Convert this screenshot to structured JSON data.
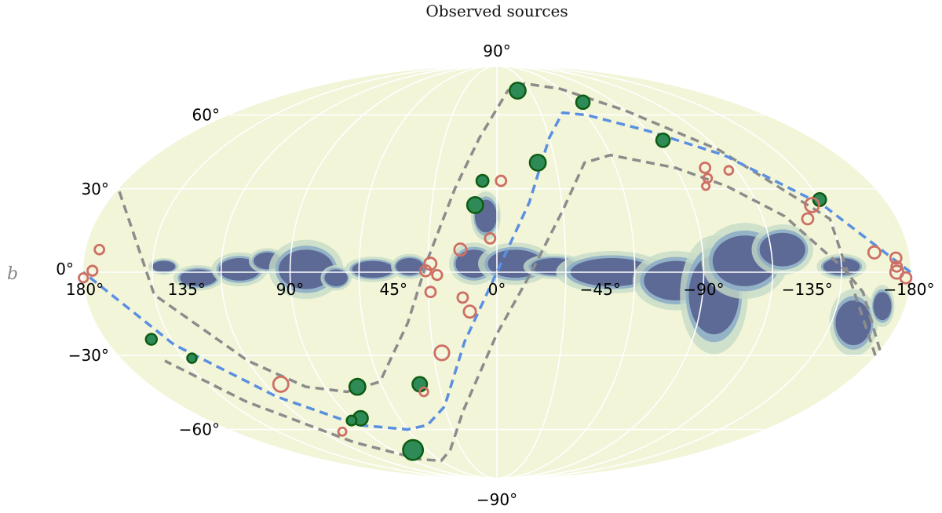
{
  "chart_data": {
    "type": "scatter",
    "projection": "mollweide",
    "title": "Observed sources",
    "xlabel": "",
    "ylabel": "b",
    "x_ticks": [
      {
        "value": 180,
        "label": "180°"
      },
      {
        "value": 135,
        "label": "135°"
      },
      {
        "value": 90,
        "label": "90°"
      },
      {
        "value": 45,
        "label": "45°"
      },
      {
        "value": 0,
        "label": "0°"
      },
      {
        "value": -45,
        "label": "−45°"
      },
      {
        "value": -90,
        "label": "−90°"
      },
      {
        "value": -135,
        "label": "−135°"
      },
      {
        "value": -180,
        "label": "−180°"
      }
    ],
    "y_ticks": [
      {
        "value": 90,
        "label": "90°"
      },
      {
        "value": 60,
        "label": "60°"
      },
      {
        "value": 30,
        "label": "30°"
      },
      {
        "value": 0,
        "label": "0°"
      },
      {
        "value": -30,
        "label": "−30°"
      },
      {
        "value": -60,
        "label": "−60°"
      },
      {
        "value": -90,
        "label": "−90°"
      }
    ],
    "xlim": [
      180,
      -180
    ],
    "ylim": [
      -90,
      90
    ],
    "grid": true,
    "colors": {
      "background_map": "#f2f5d8",
      "dust_dark": "#5d6a96",
      "dust_mid": "#8aaac7",
      "dust_light": "#c7dcc8",
      "filled_marker": "#2e8b57",
      "filled_edge": "#0e5c12",
      "open_marker": "#cd6f64",
      "gray_curve": "#8c8c8c",
      "blue_curve": "#5b8fe0",
      "grid": "#ffffff"
    },
    "series": [
      {
        "marker": "filled",
        "points": [
          {
            "l": -19,
            "b": 72,
            "size": 3
          },
          {
            "l": -66,
            "b": 66,
            "size": 2
          },
          {
            "l": -94,
            "b": 49,
            "size": 2
          },
          {
            "l": -21,
            "b": 40,
            "size": 3
          },
          {
            "l": 7,
            "b": 33,
            "size": 1.5
          },
          {
            "l": 10,
            "b": 24,
            "size": 3
          },
          {
            "l": -150,
            "b": 26,
            "size": 1.8
          },
          {
            "l": 159,
            "b": -24,
            "size": 1.2
          },
          {
            "l": 146,
            "b": -31,
            "size": 0.8
          },
          {
            "l": 73,
            "b": -42,
            "size": 3
          },
          {
            "l": 40,
            "b": -41,
            "size": 2.4
          },
          {
            "l": 84,
            "b": -55,
            "size": 2.4
          },
          {
            "l": 91,
            "b": -56,
            "size": 0.9
          },
          {
            "l": 72,
            "b": -70,
            "size": 5
          }
        ]
      },
      {
        "marker": "open",
        "points": [
          {
            "l": -2,
            "b": 33,
            "size": 1
          },
          {
            "l": -105,
            "b": 38,
            "size": 1
          },
          {
            "l": -103,
            "b": 34,
            "size": 0.6
          },
          {
            "l": -116,
            "b": 37,
            "size": 0.6
          },
          {
            "l": -100,
            "b": 31,
            "size": 0.4
          },
          {
            "l": -145,
            "b": 24,
            "size": 2.2
          },
          {
            "l": -140,
            "b": 19,
            "size": 1.2
          },
          {
            "l": 3,
            "b": 12,
            "size": 1
          },
          {
            "l": 16,
            "b": 8,
            "size": 1.5
          },
          {
            "l": 29,
            "b": 3,
            "size": 1.5
          },
          {
            "l": 31,
            "b": 0.5,
            "size": 1.2
          },
          {
            "l": 26,
            "b": -1,
            "size": 0.9
          },
          {
            "l": 29,
            "b": -7,
            "size": 1
          },
          {
            "l": 15,
            "b": -9,
            "size": 1
          },
          {
            "l": 12,
            "b": -14,
            "size": 1.5
          },
          {
            "l": 26,
            "b": -29,
            "size": 2.4
          },
          {
            "l": 39,
            "b": -44,
            "size": 0.6
          },
          {
            "l": 112,
            "b": -41,
            "size": 2.6
          },
          {
            "l": 106,
            "b": -61,
            "size": 0.5
          },
          {
            "l": 174,
            "b": 8,
            "size": 0.8
          },
          {
            "l": 176,
            "b": 0.5,
            "size": 0.9
          },
          {
            "l": 180,
            "b": -2,
            "size": 0.7
          },
          {
            "l": -165,
            "b": 7,
            "size": 1.5
          },
          {
            "l": -174,
            "b": 5,
            "size": 1.2
          },
          {
            "l": -174,
            "b": 2,
            "size": 1
          },
          {
            "l": -174,
            "b": 0,
            "size": 1.8
          },
          {
            "l": -178,
            "b": -2,
            "size": 1.2
          }
        ]
      }
    ],
    "curves": [
      {
        "style": "gray-dashed",
        "points": [
          [
            -180,
            -30
          ],
          [
            -150,
            19
          ],
          [
            -120,
            45
          ],
          [
            -90,
            62
          ],
          [
            -60,
            73
          ],
          [
            -30,
            76
          ],
          [
            -10,
            72
          ],
          [
            10,
            50
          ],
          [
            20,
            30
          ],
          [
            30,
            5
          ],
          [
            40,
            -18
          ],
          [
            60,
            -40
          ],
          [
            80,
            -44
          ],
          [
            100,
            -42
          ],
          [
            120,
            -32
          ],
          [
            150,
            -8
          ],
          [
            180,
            30
          ]
        ]
      },
      {
        "style": "gray-dashed",
        "points": [
          [
            -180,
            -28
          ],
          [
            -160,
            -7
          ],
          [
            -150,
            2
          ],
          [
            -130,
            20
          ],
          [
            -110,
            31
          ],
          [
            -90,
            38
          ],
          [
            -60,
            43
          ],
          [
            -45,
            40
          ],
          [
            -30,
            22
          ],
          [
            -15,
            0
          ],
          [
            0,
            -22
          ],
          [
            20,
            -52
          ],
          [
            40,
            -70
          ],
          [
            60,
            -76
          ],
          [
            80,
            -75
          ],
          [
            110,
            -66
          ],
          [
            140,
            -48
          ],
          [
            160,
            -32
          ]
        ]
      },
      {
        "style": "blue-dashed",
        "points": [
          [
            -180,
            0
          ],
          [
            -150,
            24
          ],
          [
            -120,
            43
          ],
          [
            -90,
            53
          ],
          [
            -60,
            60
          ],
          [
            -45,
            61
          ],
          [
            -30,
            50
          ],
          [
            -15,
            25
          ],
          [
            0,
            0
          ],
          [
            15,
            -25
          ],
          [
            30,
            -50
          ],
          [
            45,
            -58
          ],
          [
            60,
            -60
          ],
          [
            90,
            -58
          ],
          [
            120,
            -46
          ],
          [
            150,
            -26
          ],
          [
            180,
            0
          ]
        ]
      }
    ],
    "dust_patches": [
      {
        "l": 145,
        "b": 2,
        "rl": 5,
        "rb": 2
      },
      {
        "l": 130,
        "b": -2,
        "rl": 8,
        "rb": 3
      },
      {
        "l": 112,
        "b": 1,
        "rl": 9,
        "rb": 4
      },
      {
        "l": 100,
        "b": 4,
        "rl": 6,
        "rb": 3
      },
      {
        "l": 83,
        "b": 1,
        "rl": 12,
        "rb": 7
      },
      {
        "l": 70,
        "b": -2,
        "rl": 5,
        "rb": 3
      },
      {
        "l": 54,
        "b": 1,
        "rl": 9,
        "rb": 3
      },
      {
        "l": 38,
        "b": 2,
        "rl": 6,
        "rb": 3
      },
      {
        "l": 10,
        "b": 3,
        "rl": 8,
        "rb": 5
      },
      {
        "l": 5,
        "b": 20,
        "rl": 5,
        "rb": 6
      },
      {
        "l": -8,
        "b": 3,
        "rl": 12,
        "rb": 5
      },
      {
        "l": -25,
        "b": 2,
        "rl": 10,
        "rb": 3
      },
      {
        "l": -50,
        "b": 0,
        "rl": 18,
        "rb": 5
      },
      {
        "l": -78,
        "b": -3,
        "rl": 14,
        "rb": 7
      },
      {
        "l": -95,
        "b": -8,
        "rl": 11,
        "rb": 14
      },
      {
        "l": -108,
        "b": 4,
        "rl": 14,
        "rb": 9
      },
      {
        "l": -125,
        "b": 8,
        "rl": 10,
        "rb": 6
      },
      {
        "l": -150,
        "b": 2,
        "rl": 8,
        "rb": 3
      },
      {
        "l": -160,
        "b": -18,
        "rl": 8,
        "rb": 8
      },
      {
        "l": -170,
        "b": -12,
        "rl": 4,
        "rb": 5
      }
    ]
  }
}
